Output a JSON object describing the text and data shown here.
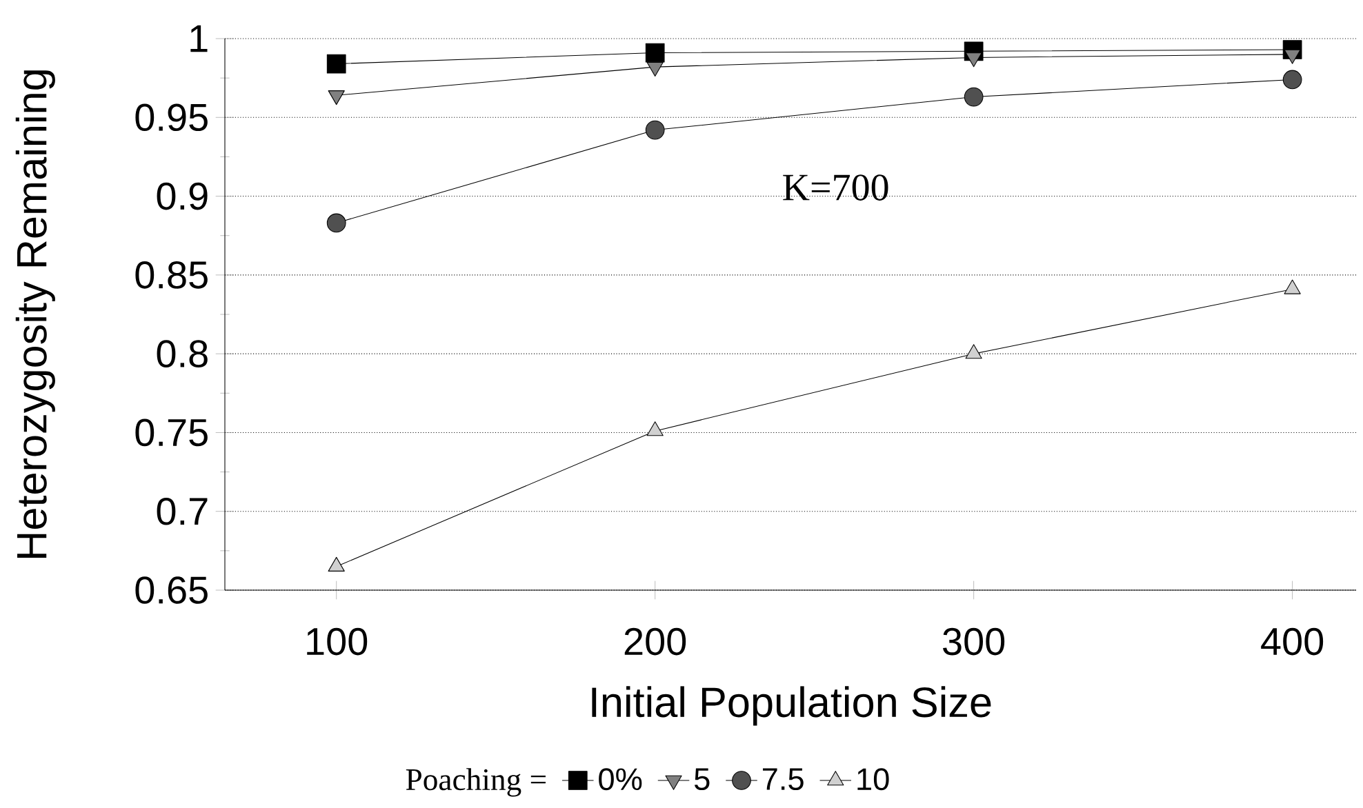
{
  "chart_data": {
    "type": "line",
    "xlabel": "Initial Population Size",
    "ylabel": "Heterozygosity Remaining",
    "legend_title": "Poaching =",
    "x": [
      100,
      200,
      300,
      400
    ],
    "series": [
      {
        "name": "0%",
        "color": "#000000",
        "marker": "square",
        "values": [
          0.984,
          0.991,
          0.992,
          0.993
        ]
      },
      {
        "name": "5",
        "color": "#808080",
        "marker": "triangle-down",
        "values": [
          0.964,
          0.982,
          0.988,
          0.99
        ]
      },
      {
        "name": "7.5",
        "color": "#505050",
        "marker": "circle",
        "values": [
          0.883,
          0.942,
          0.963,
          0.974
        ]
      },
      {
        "name": "10",
        "color": "#d0d0d0",
        "marker": "triangle",
        "values": [
          0.665,
          0.751,
          0.8,
          0.841
        ]
      }
    ],
    "xlim": [
      65,
      420
    ],
    "xticks": [
      100,
      200,
      300,
      400
    ],
    "ylim": [
      0.65,
      1
    ],
    "yticks": [
      {
        "value": 0.65,
        "label": "0.65"
      },
      {
        "value": 0.7,
        "label": "0.7"
      },
      {
        "value": 0.75,
        "label": "0.75"
      },
      {
        "value": 0.8,
        "label": "0.8"
      },
      {
        "value": 0.85,
        "label": "0.85"
      },
      {
        "value": 0.9,
        "label": "0.9"
      },
      {
        "value": 0.95,
        "label": "0.95"
      },
      {
        "value": 1,
        "label": "1"
      }
    ],
    "grid": "y",
    "legend": "bottom",
    "line_style": "solid",
    "annotations": [
      "K=700"
    ]
  }
}
